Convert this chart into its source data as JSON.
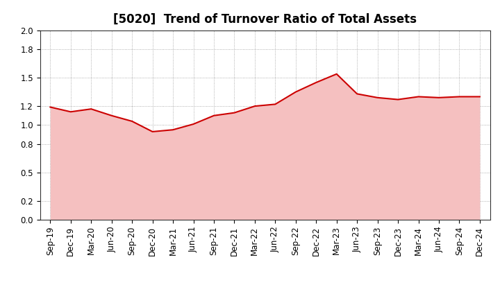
{
  "title": "[5020]  Trend of Turnover Ratio of Total Assets",
  "labels": [
    "Sep-19",
    "Dec-19",
    "Mar-20",
    "Jun-20",
    "Sep-20",
    "Dec-20",
    "Mar-21",
    "Jun-21",
    "Sep-21",
    "Dec-21",
    "Mar-22",
    "Jun-22",
    "Sep-22",
    "Dec-22",
    "Mar-23",
    "Jun-23",
    "Sep-23",
    "Dec-23",
    "Mar-24",
    "Jun-24",
    "Sep-24",
    "Dec-24"
  ],
  "values": [
    1.19,
    1.14,
    1.17,
    1.1,
    1.04,
    0.93,
    0.95,
    1.01,
    1.1,
    1.13,
    1.2,
    1.22,
    1.35,
    1.45,
    1.54,
    1.33,
    1.29,
    1.27,
    1.3,
    1.29,
    1.3,
    1.3
  ],
  "line_color": "#cc0000",
  "fill_color": "#f5c0c0",
  "background_color": "#ffffff",
  "grid_color": "#999999",
  "ylim": [
    0.0,
    2.0
  ],
  "yticks": [
    0.0,
    0.2,
    0.5,
    0.8,
    1.0,
    1.2,
    1.5,
    1.8,
    2.0
  ],
  "title_fontsize": 12,
  "tick_fontsize": 8.5
}
